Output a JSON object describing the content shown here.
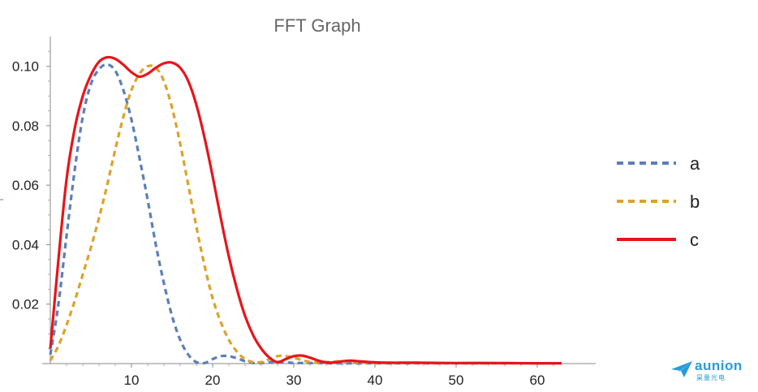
{
  "chart_data": {
    "type": "line",
    "title": "FFT Graph",
    "xlabel": "",
    "ylabel": "",
    "xlim": [
      0,
      64
    ],
    "ylim": [
      0,
      0.11
    ],
    "x_ticks": [
      10,
      20,
      30,
      40,
      50,
      60
    ],
    "y_ticks": [
      0.02,
      0.04,
      0.06,
      0.08,
      0.1
    ],
    "x_tick_labels": [
      "10",
      "20",
      "30",
      "40",
      "50",
      "60"
    ],
    "y_tick_labels": [
      "0.02",
      "0.04",
      "0.06",
      "0.08",
      "0.10"
    ],
    "legend_position": "right",
    "grid": false,
    "series": [
      {
        "name": "a",
        "style": "dashed",
        "color": "#5b7fb8",
        "points": [
          [
            0,
            0.003
          ],
          [
            1,
            0.02
          ],
          [
            2,
            0.043
          ],
          [
            3,
            0.065
          ],
          [
            4,
            0.083
          ],
          [
            5,
            0.094
          ],
          [
            6,
            0.099
          ],
          [
            7,
            0.1006
          ],
          [
            8,
            0.0985
          ],
          [
            9,
            0.092
          ],
          [
            10,
            0.082
          ],
          [
            11,
            0.069
          ],
          [
            12,
            0.055
          ],
          [
            13,
            0.04
          ],
          [
            14,
            0.027
          ],
          [
            15,
            0.016
          ],
          [
            16,
            0.008
          ],
          [
            17,
            0.003
          ],
          [
            18,
            0.0005
          ],
          [
            19,
            0.0002
          ],
          [
            20,
            0.0015
          ],
          [
            21,
            0.0025
          ],
          [
            22,
            0.0025
          ],
          [
            23,
            0.0018
          ],
          [
            24,
            0.0008
          ],
          [
            25,
            0.0002
          ],
          [
            26,
            0.0002
          ],
          [
            27,
            0.0005
          ],
          [
            28,
            0.0006
          ],
          [
            29,
            0.0004
          ],
          [
            30,
            0.0002
          ],
          [
            32,
            0.0002
          ],
          [
            35,
            0.0001
          ],
          [
            40,
            0.0001
          ],
          [
            45,
            0.0001
          ],
          [
            50,
            0.0001
          ],
          [
            55,
            0.0001
          ],
          [
            63,
            0.0001
          ]
        ]
      },
      {
        "name": "b",
        "style": "dashed",
        "color": "#dba22b",
        "points": [
          [
            0,
            0.001
          ],
          [
            1,
            0.006
          ],
          [
            2,
            0.013
          ],
          [
            3,
            0.021
          ],
          [
            4,
            0.03
          ],
          [
            5,
            0.039
          ],
          [
            6,
            0.049
          ],
          [
            7,
            0.06
          ],
          [
            8,
            0.072
          ],
          [
            9,
            0.083
          ],
          [
            10,
            0.092
          ],
          [
            11,
            0.0975
          ],
          [
            12,
            0.1
          ],
          [
            13,
            0.0995
          ],
          [
            14,
            0.095
          ],
          [
            15,
            0.086
          ],
          [
            16,
            0.074
          ],
          [
            17,
            0.06
          ],
          [
            18,
            0.046
          ],
          [
            19,
            0.033
          ],
          [
            20,
            0.022
          ],
          [
            21,
            0.014
          ],
          [
            22,
            0.008
          ],
          [
            23,
            0.004
          ],
          [
            24,
            0.0015
          ],
          [
            25,
            0.0005
          ],
          [
            26,
            0.0005
          ],
          [
            27,
            0.0015
          ],
          [
            28,
            0.0025
          ],
          [
            29,
            0.0025
          ],
          [
            30,
            0.002
          ],
          [
            31,
            0.0012
          ],
          [
            32,
            0.0005
          ],
          [
            33,
            0.0003
          ],
          [
            34,
            0.0005
          ],
          [
            36,
            0.0008
          ],
          [
            38,
            0.0004
          ],
          [
            40,
            0.0002
          ],
          [
            45,
            0.0002
          ],
          [
            50,
            0.0001
          ],
          [
            55,
            0.0001
          ],
          [
            63,
            0.0001
          ]
        ]
      },
      {
        "name": "c",
        "style": "solid",
        "color": "#e8141a",
        "points": [
          [
            0,
            0.005
          ],
          [
            1,
            0.035
          ],
          [
            2,
            0.062
          ],
          [
            3,
            0.079
          ],
          [
            4,
            0.09
          ],
          [
            5,
            0.097
          ],
          [
            6,
            0.1015
          ],
          [
            7,
            0.103
          ],
          [
            8,
            0.1025
          ],
          [
            9,
            0.1005
          ],
          [
            10,
            0.098
          ],
          [
            11,
            0.0965
          ],
          [
            12,
            0.0975
          ],
          [
            13,
            0.0995
          ],
          [
            14,
            0.101
          ],
          [
            15,
            0.1012
          ],
          [
            16,
            0.0995
          ],
          [
            17,
            0.095
          ],
          [
            18,
            0.087
          ],
          [
            19,
            0.076
          ],
          [
            20,
            0.063
          ],
          [
            21,
            0.049
          ],
          [
            22,
            0.036
          ],
          [
            23,
            0.025
          ],
          [
            24,
            0.016
          ],
          [
            25,
            0.0095
          ],
          [
            26,
            0.005
          ],
          [
            27,
            0.002
          ],
          [
            28,
            0.0005
          ],
          [
            29,
            0.0015
          ],
          [
            30,
            0.0025
          ],
          [
            31,
            0.0027
          ],
          [
            32,
            0.002
          ],
          [
            33,
            0.001
          ],
          [
            34,
            0.0004
          ],
          [
            35,
            0.0004
          ],
          [
            36,
            0.0008
          ],
          [
            37,
            0.001
          ],
          [
            38,
            0.0008
          ],
          [
            40,
            0.0004
          ],
          [
            42,
            0.0003
          ],
          [
            45,
            0.0003
          ],
          [
            50,
            0.0002
          ],
          [
            55,
            0.0002
          ],
          [
            60,
            0.0001
          ],
          [
            63,
            0.0001
          ]
        ]
      }
    ]
  },
  "watermark": {
    "brand": "aunion",
    "subtitle": "昊量光电",
    "icon": "paper-plane-icon",
    "color": "#2a9bd8"
  }
}
